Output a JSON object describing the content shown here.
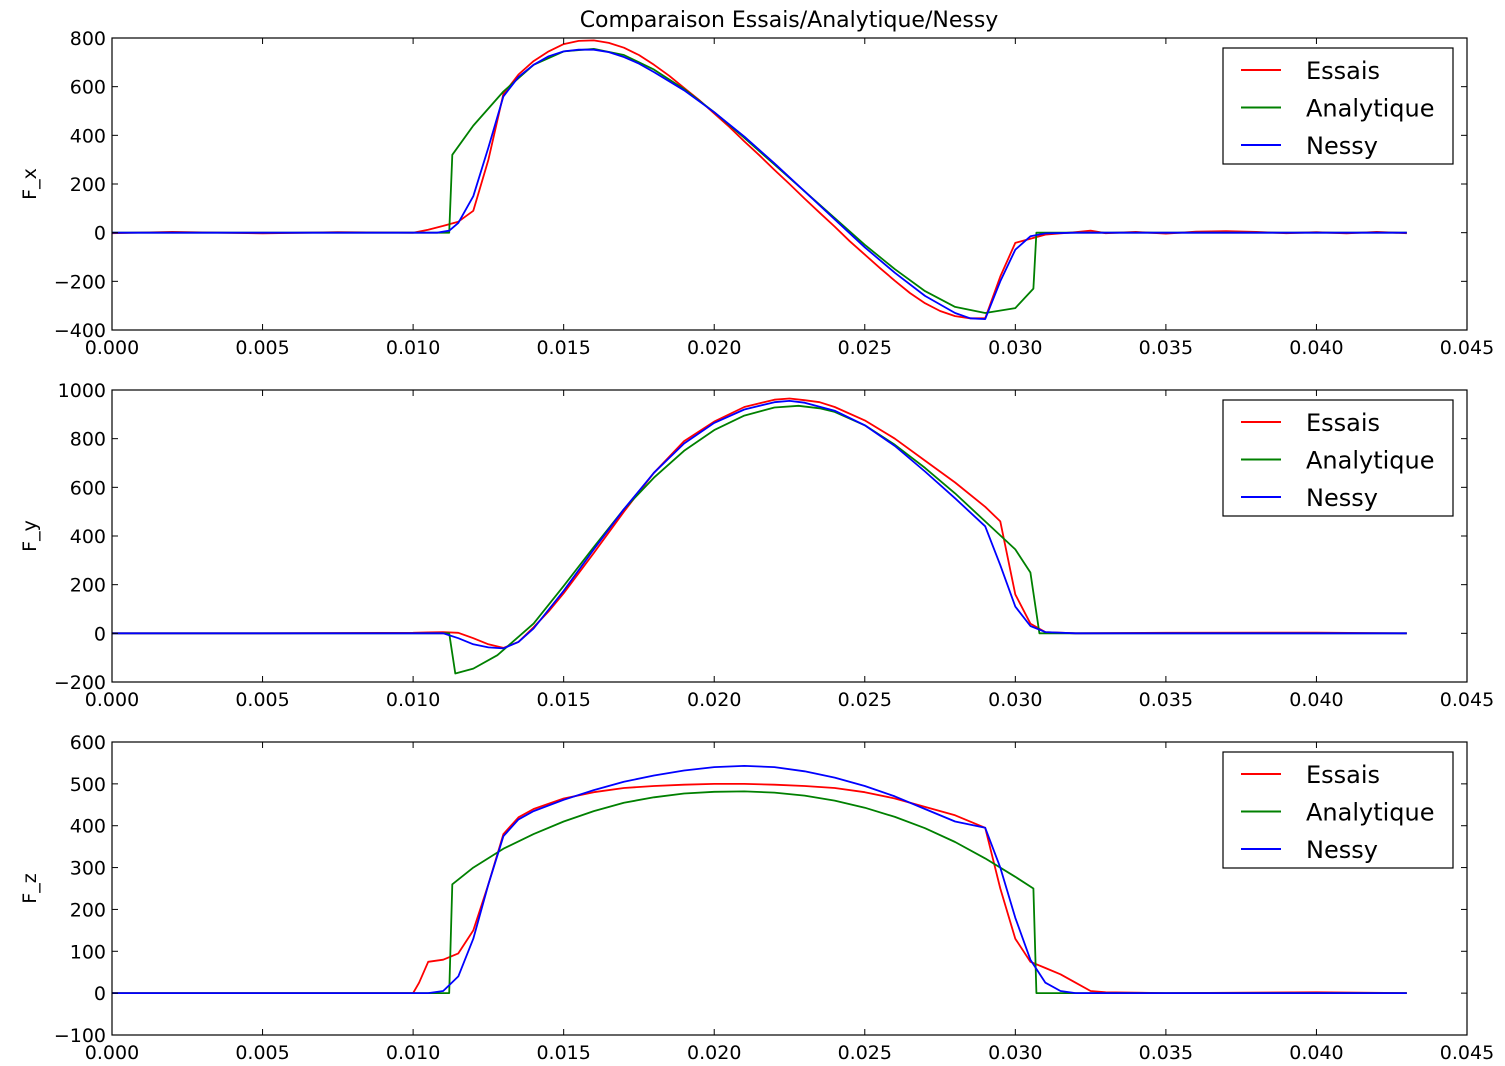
{
  "figure": {
    "title": "Comparaison Essais/Analytique/Nessy"
  },
  "colors": {
    "Essais": "#ff0000",
    "Analytique": "#008000",
    "Nessy": "#0000ff"
  },
  "chart_data": [
    {
      "type": "line",
      "title": "Comparaison Essais/Analytique/Nessy",
      "xlabel": "",
      "ylabel": "F_x",
      "xlim": [
        0,
        0.045
      ],
      "ylim": [
        -400,
        800
      ],
      "xticks": [
        0.0,
        0.005,
        0.01,
        0.015,
        0.02,
        0.025,
        0.03,
        0.035,
        0.04,
        0.045
      ],
      "xtick_labels": [
        "0.000",
        "0.005",
        "0.010",
        "0.015",
        "0.020",
        "0.025",
        "0.030",
        "0.035",
        "0.040",
        "0.045"
      ],
      "yticks": [
        -400,
        -200,
        0,
        200,
        400,
        600,
        800
      ],
      "ytick_labels": [
        "−400",
        "−200",
        "0",
        "200",
        "400",
        "600",
        "800"
      ],
      "grid": false,
      "legend": "top-right",
      "series": [
        {
          "name": "Essais",
          "x": [
            0,
            0.002,
            0.005,
            0.0075,
            0.01,
            0.0105,
            0.011,
            0.0115,
            0.012,
            0.0125,
            0.013,
            0.0135,
            0.014,
            0.0145,
            0.015,
            0.0155,
            0.016,
            0.0165,
            0.017,
            0.0175,
            0.018,
            0.0185,
            0.019,
            0.0195,
            0.02,
            0.0205,
            0.021,
            0.0215,
            0.022,
            0.0225,
            0.023,
            0.0235,
            0.024,
            0.0245,
            0.025,
            0.0255,
            0.026,
            0.0265,
            0.027,
            0.0275,
            0.028,
            0.0285,
            0.029,
            0.0295,
            0.03,
            0.0305,
            0.031,
            0.0315,
            0.032,
            0.0325,
            0.033,
            0.034,
            0.035,
            0.036,
            0.037,
            0.038,
            0.039,
            0.04,
            0.041,
            0.042,
            0.043
          ],
          "y": [
            -2,
            3,
            -3,
            2,
            0,
            12,
            28,
            45,
            90,
            300,
            570,
            650,
            705,
            745,
            775,
            788,
            790,
            780,
            760,
            730,
            690,
            645,
            595,
            545,
            490,
            435,
            375,
            318,
            258,
            200,
            140,
            82,
            25,
            -35,
            -90,
            -145,
            -198,
            -248,
            -290,
            -322,
            -343,
            -352,
            -352,
            -180,
            -42,
            -25,
            -8,
            -3,
            2,
            8,
            -2,
            3,
            -4,
            4,
            6,
            3,
            -2,
            2,
            -3,
            3,
            -2
          ]
        },
        {
          "name": "Analytique",
          "x": [
            0,
            0.0112,
            0.0113,
            0.012,
            0.013,
            0.014,
            0.015,
            0.016,
            0.017,
            0.018,
            0.019,
            0.02,
            0.021,
            0.022,
            0.023,
            0.024,
            0.025,
            0.026,
            0.027,
            0.028,
            0.029,
            0.03,
            0.0306,
            0.0307,
            0.043
          ],
          "y": [
            0,
            0,
            320,
            440,
            580,
            690,
            745,
            755,
            730,
            670,
            590,
            495,
            390,
            280,
            170,
            60,
            -50,
            -150,
            -240,
            -305,
            -330,
            -310,
            -230,
            0,
            0
          ]
        },
        {
          "name": "Nessy",
          "x": [
            0,
            0.005,
            0.0108,
            0.0112,
            0.0115,
            0.012,
            0.0125,
            0.013,
            0.0135,
            0.014,
            0.0145,
            0.015,
            0.0155,
            0.016,
            0.0165,
            0.017,
            0.0175,
            0.018,
            0.019,
            0.02,
            0.021,
            0.022,
            0.023,
            0.024,
            0.025,
            0.026,
            0.027,
            0.028,
            0.0285,
            0.029,
            0.0295,
            0.03,
            0.0305,
            0.031,
            0.032,
            0.043
          ],
          "y": [
            0,
            0,
            0,
            8,
            40,
            150,
            350,
            560,
            640,
            690,
            725,
            745,
            752,
            752,
            742,
            722,
            695,
            660,
            585,
            495,
            395,
            285,
            170,
            55,
            -60,
            -165,
            -260,
            -330,
            -352,
            -355,
            -200,
            -70,
            -15,
            -3,
            0,
            0
          ]
        }
      ]
    },
    {
      "type": "line",
      "title": "",
      "xlabel": "",
      "ylabel": "F_y",
      "xlim": [
        0,
        0.045
      ],
      "ylim": [
        -200,
        1000
      ],
      "xticks": [
        0.0,
        0.005,
        0.01,
        0.015,
        0.02,
        0.025,
        0.03,
        0.035,
        0.04,
        0.045
      ],
      "xtick_labels": [
        "0.000",
        "0.005",
        "0.010",
        "0.015",
        "0.020",
        "0.025",
        "0.030",
        "0.035",
        "0.040",
        "0.045"
      ],
      "yticks": [
        -200,
        0,
        200,
        400,
        600,
        800,
        1000
      ],
      "ytick_labels": [
        "−200",
        "0",
        "200",
        "400",
        "600",
        "800",
        "1000"
      ],
      "grid": false,
      "legend": "top-right",
      "series": [
        {
          "name": "Essais",
          "x": [
            0,
            0.005,
            0.01,
            0.0105,
            0.011,
            0.0115,
            0.012,
            0.0125,
            0.013,
            0.0135,
            0.014,
            0.0145,
            0.015,
            0.016,
            0.017,
            0.018,
            0.019,
            0.02,
            0.021,
            0.022,
            0.0225,
            0.023,
            0.0235,
            0.024,
            0.025,
            0.026,
            0.027,
            0.028,
            0.029,
            0.0295,
            0.03,
            0.0305,
            0.031,
            0.032,
            0.035,
            0.04,
            0.043
          ],
          "y": [
            0,
            0,
            2,
            4,
            5,
            2,
            -20,
            -45,
            -60,
            -35,
            25,
            90,
            165,
            330,
            500,
            660,
            790,
            870,
            930,
            960,
            965,
            958,
            950,
            930,
            875,
            800,
            710,
            620,
            520,
            460,
            160,
            40,
            5,
            0,
            2,
            3,
            0
          ]
        },
        {
          "name": "Analytique",
          "x": [
            0,
            0.0112,
            0.0114,
            0.012,
            0.0128,
            0.014,
            0.015,
            0.016,
            0.017,
            0.018,
            0.019,
            0.02,
            0.021,
            0.022,
            0.0228,
            0.0235,
            0.024,
            0.025,
            0.026,
            0.027,
            0.028,
            0.029,
            0.03,
            0.0305,
            0.0308,
            0.031,
            0.043
          ],
          "y": [
            0,
            0,
            -165,
            -145,
            -90,
            40,
            195,
            355,
            510,
            640,
            750,
            835,
            895,
            928,
            935,
            925,
            910,
            855,
            775,
            680,
            575,
            460,
            345,
            250,
            0,
            0,
            0
          ]
        },
        {
          "name": "Nessy",
          "x": [
            0,
            0.005,
            0.011,
            0.0115,
            0.012,
            0.0125,
            0.013,
            0.0135,
            0.014,
            0.015,
            0.016,
            0.017,
            0.018,
            0.019,
            0.02,
            0.021,
            0.022,
            0.0225,
            0.023,
            0.024,
            0.025,
            0.026,
            0.027,
            0.028,
            0.029,
            0.0295,
            0.03,
            0.0305,
            0.031,
            0.032,
            0.043
          ],
          "y": [
            0,
            0,
            0,
            -20,
            -45,
            -58,
            -62,
            -35,
            20,
            175,
            345,
            510,
            660,
            780,
            865,
            920,
            950,
            955,
            948,
            915,
            855,
            770,
            665,
            555,
            440,
            280,
            110,
            30,
            5,
            0,
            0
          ]
        }
      ]
    },
    {
      "type": "line",
      "title": "",
      "xlabel": "",
      "ylabel": "F_z",
      "xlim": [
        0,
        0.045
      ],
      "ylim": [
        -100,
        600
      ],
      "xticks": [
        0.0,
        0.005,
        0.01,
        0.015,
        0.02,
        0.025,
        0.03,
        0.035,
        0.04,
        0.045
      ],
      "xtick_labels": [
        "0.000",
        "0.005",
        "0.010",
        "0.015",
        "0.020",
        "0.025",
        "0.030",
        "0.035",
        "0.040",
        "0.045"
      ],
      "yticks": [
        -100,
        0,
        100,
        200,
        300,
        400,
        500,
        600
      ],
      "ytick_labels": [
        "−100",
        "0",
        "100",
        "200",
        "300",
        "400",
        "500",
        "600"
      ],
      "grid": false,
      "legend": "top-right",
      "series": [
        {
          "name": "Essais",
          "x": [
            0,
            0.005,
            0.01,
            0.0102,
            0.0105,
            0.011,
            0.0115,
            0.012,
            0.0125,
            0.013,
            0.0135,
            0.014,
            0.015,
            0.016,
            0.017,
            0.018,
            0.019,
            0.02,
            0.021,
            0.022,
            0.023,
            0.024,
            0.025,
            0.026,
            0.027,
            0.028,
            0.029,
            0.0295,
            0.03,
            0.0305,
            0.031,
            0.0315,
            0.032,
            0.0325,
            0.033,
            0.035,
            0.04,
            0.043
          ],
          "y": [
            0,
            0,
            0,
            25,
            75,
            80,
            95,
            150,
            260,
            380,
            420,
            440,
            465,
            480,
            490,
            495,
            498,
            500,
            500,
            498,
            495,
            490,
            480,
            465,
            445,
            425,
            395,
            250,
            130,
            75,
            60,
            45,
            25,
            5,
            2,
            0,
            2,
            0
          ]
        },
        {
          "name": "Analytique",
          "x": [
            0,
            0.0112,
            0.0113,
            0.012,
            0.013,
            0.014,
            0.015,
            0.016,
            0.017,
            0.018,
            0.019,
            0.02,
            0.021,
            0.022,
            0.023,
            0.024,
            0.025,
            0.026,
            0.027,
            0.028,
            0.029,
            0.03,
            0.0306,
            0.0307,
            0.043
          ],
          "y": [
            0,
            0,
            260,
            300,
            345,
            380,
            410,
            435,
            455,
            468,
            477,
            481,
            482,
            479,
            472,
            460,
            443,
            421,
            394,
            361,
            322,
            278,
            250,
            0,
            0
          ]
        },
        {
          "name": "Nessy",
          "x": [
            0,
            0.005,
            0.0105,
            0.011,
            0.0115,
            0.012,
            0.0125,
            0.013,
            0.0135,
            0.014,
            0.015,
            0.016,
            0.017,
            0.018,
            0.019,
            0.02,
            0.021,
            0.022,
            0.023,
            0.024,
            0.025,
            0.026,
            0.027,
            0.028,
            0.029,
            0.0295,
            0.03,
            0.0305,
            0.031,
            0.0315,
            0.032,
            0.043
          ],
          "y": [
            0,
            0,
            0,
            5,
            40,
            130,
            260,
            375,
            415,
            435,
            462,
            485,
            505,
            520,
            532,
            540,
            543,
            540,
            530,
            515,
            495,
            470,
            440,
            410,
            395,
            300,
            180,
            80,
            25,
            5,
            0,
            0
          ]
        }
      ]
    }
  ]
}
